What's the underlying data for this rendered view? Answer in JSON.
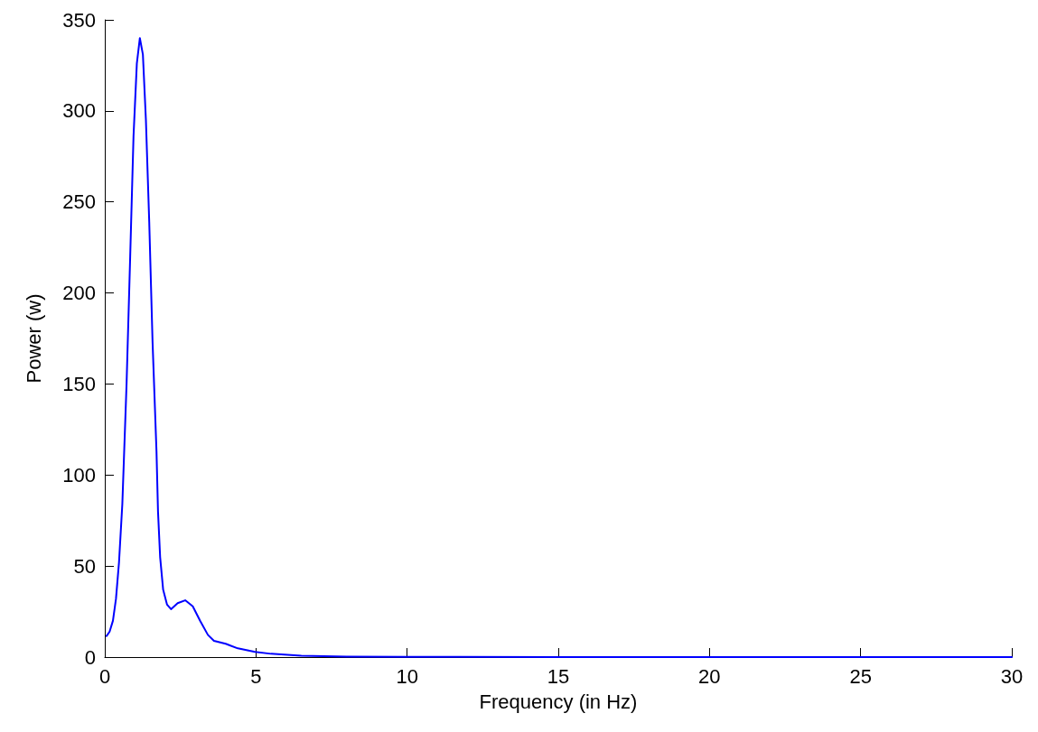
{
  "chart_data": {
    "type": "line",
    "xlabel": "Frequency (in Hz)",
    "ylabel": "Power (w)",
    "xlim": [
      0,
      30
    ],
    "xticks": [
      0,
      5,
      10,
      15,
      20,
      25,
      30
    ],
    "ylim": [
      0,
      350
    ],
    "yticks": [
      0,
      50,
      100,
      150,
      200,
      250,
      300,
      350
    ],
    "grid": false,
    "marker": "none",
    "line_style": "solid",
    "series": [
      {
        "color": "#0000ff",
        "x": [
          0.06,
          0.16,
          0.27,
          0.37,
          0.47,
          0.58,
          0.72,
          0.84,
          0.95,
          1.06,
          1.16,
          1.26,
          1.36,
          1.47,
          1.58,
          1.71,
          1.76,
          1.83,
          1.93,
          2.06,
          2.19,
          2.41,
          2.66,
          2.91,
          3.16,
          3.41,
          3.61,
          4.0,
          4.4,
          4.97,
          5.5,
          6.5,
          8,
          10,
          15,
          20,
          25,
          30
        ],
        "values": [
          11.6,
          14,
          20,
          32,
          52,
          84,
          150,
          220,
          286,
          326,
          340,
          331,
          295,
          239,
          173,
          113,
          80,
          55,
          37,
          28.8,
          26.3,
          29.6,
          31.2,
          27.9,
          19.7,
          12.2,
          8.9,
          7.3,
          4.8,
          2.8,
          1.8,
          0.8,
          0.3,
          0.1,
          0,
          0,
          0,
          0
        ]
      }
    ]
  }
}
